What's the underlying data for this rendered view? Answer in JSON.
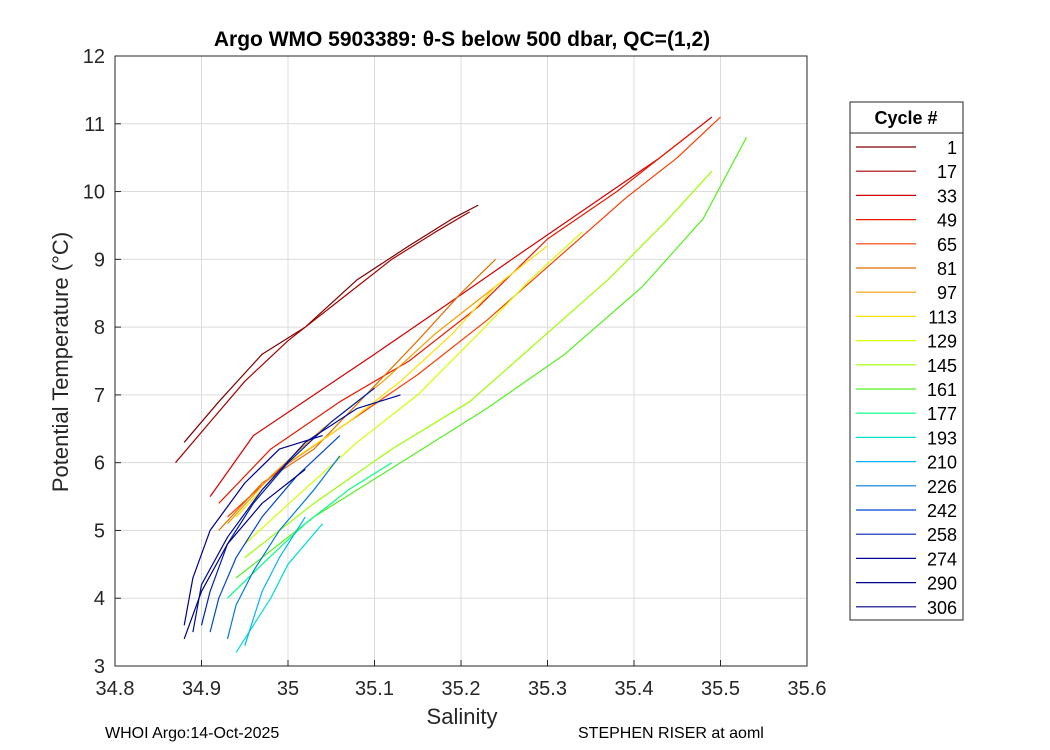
{
  "chart_data": {
    "type": "line",
    "title": "Argo WMO 5903389: θ-S below 500 dbar,  QC=(1,2)",
    "xlabel": "Salinity",
    "ylabel": "Potential Temperature (°C)",
    "xlim": [
      34.8,
      35.6
    ],
    "ylim": [
      3,
      12
    ],
    "xticks": [
      "34.8",
      "34.9",
      "35",
      "35.1",
      "35.2",
      "35.3",
      "35.4",
      "35.5",
      "35.6"
    ],
    "yticks": [
      "3",
      "4",
      "5",
      "6",
      "7",
      "8",
      "9",
      "10",
      "11",
      "12"
    ],
    "grid": true,
    "legend": {
      "title": "Cycle #",
      "placement": "outside-right",
      "entries": [
        {
          "label": "1",
          "color": "#7f0000"
        },
        {
          "label": "17",
          "color": "#a50000"
        },
        {
          "label": "33",
          "color": "#d40000"
        },
        {
          "label": "49",
          "color": "#e81a00"
        },
        {
          "label": "65",
          "color": "#ff3b00"
        },
        {
          "label": "81",
          "color": "#e07000"
        },
        {
          "label": "97",
          "color": "#f0a000"
        },
        {
          "label": "113",
          "color": "#ffe000"
        },
        {
          "label": "129",
          "color": "#d4ff00"
        },
        {
          "label": "145",
          "color": "#9bff00"
        },
        {
          "label": "161",
          "color": "#55f020"
        },
        {
          "label": "177",
          "color": "#00ff80"
        },
        {
          "label": "193",
          "color": "#00e0d0"
        },
        {
          "label": "210",
          "color": "#00b4ff"
        },
        {
          "label": "226",
          "color": "#0078e0"
        },
        {
          "label": "242",
          "color": "#0046d0"
        },
        {
          "label": "258",
          "color": "#0020b0"
        },
        {
          "label": "274",
          "color": "#000c98"
        },
        {
          "label": "290",
          "color": "#00008c"
        },
        {
          "label": "306",
          "color": "#000080"
        }
      ]
    },
    "series": [
      {
        "cycle": "1",
        "color": "#7f0000",
        "x": [
          34.88,
          34.92,
          34.97,
          35.02,
          35.08,
          35.14,
          35.19,
          35.22
        ],
        "y": [
          6.3,
          6.9,
          7.6,
          8.0,
          8.7,
          9.2,
          9.6,
          9.8
        ]
      },
      {
        "cycle": "17",
        "color": "#a50000",
        "x": [
          34.87,
          34.91,
          34.95,
          35.0,
          35.06,
          35.12,
          35.17,
          35.21
        ],
        "y": [
          6.0,
          6.6,
          7.2,
          7.8,
          8.4,
          9.0,
          9.4,
          9.7
        ]
      },
      {
        "cycle": "33",
        "color": "#d40000",
        "x": [
          34.91,
          34.96,
          35.03,
          35.1,
          35.18,
          35.27,
          35.35,
          35.43,
          35.49
        ],
        "y": [
          5.5,
          6.4,
          7.0,
          7.6,
          8.3,
          9.1,
          9.8,
          10.5,
          11.1
        ]
      },
      {
        "cycle": "49",
        "color": "#e81a00",
        "x": [
          34.92,
          34.98,
          35.06,
          35.14,
          35.22,
          35.3,
          35.38,
          35.44,
          35.47
        ],
        "y": [
          5.4,
          6.2,
          6.9,
          7.5,
          8.3,
          9.3,
          10.0,
          10.6,
          10.9
        ]
      },
      {
        "cycle": "65",
        "color": "#ff3b00",
        "x": [
          34.93,
          34.99,
          35.07,
          35.15,
          35.23,
          35.31,
          35.39,
          35.45,
          35.5
        ],
        "y": [
          5.2,
          5.9,
          6.6,
          7.3,
          8.1,
          9.0,
          9.9,
          10.5,
          11.1
        ]
      },
      {
        "cycle": "81",
        "color": "#e07000",
        "x": [
          34.92,
          34.97,
          35.03,
          35.09,
          35.15,
          35.2,
          35.24
        ],
        "y": [
          5.0,
          5.7,
          6.2,
          7.0,
          7.8,
          8.5,
          9.0
        ]
      },
      {
        "cycle": "97",
        "color": "#f0a000",
        "x": [
          34.93,
          34.98,
          35.04,
          35.11,
          35.17,
          35.22,
          35.27
        ],
        "y": [
          5.1,
          5.8,
          6.5,
          7.2,
          7.9,
          8.4,
          8.9
        ]
      },
      {
        "cycle": "113",
        "color": "#ffe000",
        "x": [
          34.94,
          35.0,
          35.07,
          35.13,
          35.19,
          35.24,
          35.3
        ],
        "y": [
          5.2,
          6.0,
          6.6,
          7.2,
          7.9,
          8.6,
          9.2
        ]
      },
      {
        "cycle": "129",
        "color": "#d4ff00",
        "x": [
          34.95,
          35.01,
          35.08,
          35.15,
          35.22,
          35.28,
          35.34
        ],
        "y": [
          4.8,
          5.5,
          6.3,
          7.0,
          7.9,
          8.7,
          9.4
        ]
      },
      {
        "cycle": "145",
        "color": "#9bff00",
        "x": [
          34.95,
          35.03,
          35.12,
          35.21,
          35.29,
          35.37,
          35.44,
          35.49
        ],
        "y": [
          4.6,
          5.4,
          6.2,
          6.9,
          7.8,
          8.7,
          9.6,
          10.3
        ]
      },
      {
        "cycle": "161",
        "color": "#55f020",
        "x": [
          34.94,
          35.03,
          35.13,
          35.23,
          35.32,
          35.41,
          35.48,
          35.53
        ],
        "y": [
          4.3,
          5.2,
          6.0,
          6.8,
          7.6,
          8.6,
          9.6,
          10.8
        ]
      },
      {
        "cycle": "177",
        "color": "#00ff80",
        "x": [
          34.93,
          34.97,
          35.02,
          35.07,
          35.12
        ],
        "y": [
          4.0,
          4.5,
          5.1,
          5.6,
          6.0
        ]
      },
      {
        "cycle": "193",
        "color": "#00e0d0",
        "x": [
          34.94,
          34.96,
          34.98,
          35.0,
          35.04
        ],
        "y": [
          3.2,
          3.6,
          4.0,
          4.5,
          5.1
        ]
      },
      {
        "cycle": "210",
        "color": "#00b4ff",
        "x": [
          34.95,
          34.96,
          34.97,
          34.99,
          35.02
        ],
        "y": [
          3.3,
          3.7,
          4.1,
          4.6,
          5.2
        ]
      },
      {
        "cycle": "226",
        "color": "#0078e0",
        "x": [
          34.93,
          34.94,
          34.96,
          34.99,
          35.03,
          35.06
        ],
        "y": [
          3.4,
          3.9,
          4.4,
          5.0,
          5.6,
          6.1
        ]
      },
      {
        "cycle": "242",
        "color": "#0046d0",
        "x": [
          34.91,
          34.92,
          34.94,
          34.97,
          35.01,
          35.06
        ],
        "y": [
          3.5,
          4.0,
          4.6,
          5.2,
          5.8,
          6.4
        ]
      },
      {
        "cycle": "258",
        "color": "#0020b0",
        "x": [
          34.9,
          34.91,
          34.93,
          34.96,
          35.0,
          35.05,
          35.1
        ],
        "y": [
          3.6,
          4.1,
          4.8,
          5.4,
          6.0,
          6.6,
          7.1
        ]
      },
      {
        "cycle": "274",
        "color": "#000c98",
        "x": [
          34.89,
          34.9,
          34.93,
          34.97,
          35.02,
          35.08,
          35.13
        ],
        "y": [
          3.5,
          4.2,
          4.9,
          5.6,
          6.3,
          6.8,
          7.0
        ]
      },
      {
        "cycle": "290",
        "color": "#00008c",
        "x": [
          34.88,
          34.89,
          34.91,
          34.95,
          34.99,
          35.04
        ],
        "y": [
          3.6,
          4.3,
          5.0,
          5.7,
          6.2,
          6.4
        ]
      },
      {
        "cycle": "306",
        "color": "#000080",
        "x": [
          34.88,
          34.9,
          34.93,
          34.97,
          35.02
        ],
        "y": [
          3.4,
          4.1,
          4.8,
          5.4,
          5.9
        ]
      }
    ]
  },
  "footer": {
    "left": "WHOI Argo:14-Oct-2025",
    "right": "STEPHEN RISER at aoml"
  }
}
